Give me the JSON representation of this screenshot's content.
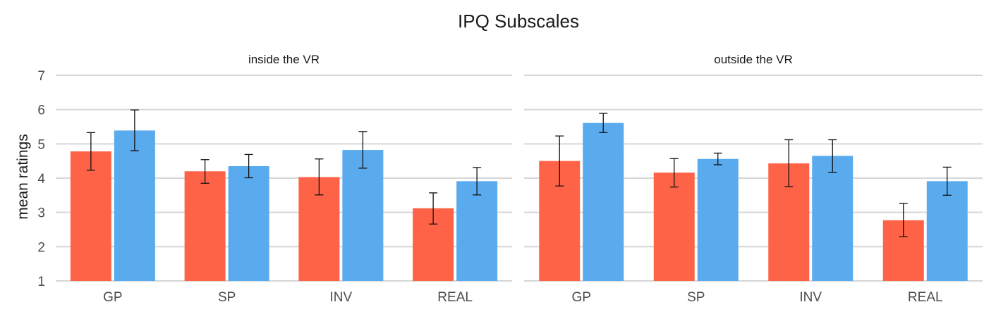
{
  "chart_data": {
    "type": "bar",
    "title": "IPQ Subscales",
    "xlabel": "",
    "ylabel": "mean ratings",
    "ylim": [
      1,
      7
    ],
    "yticks": [
      1,
      2,
      3,
      4,
      5,
      6,
      7
    ],
    "grid": true,
    "categories": [
      "GP",
      "SP",
      "INV",
      "REAL"
    ],
    "series_colors": [
      "#ff6347",
      "#5aaaee"
    ],
    "facets": [
      {
        "label": "inside the VR",
        "series": [
          {
            "values": [
              4.78,
              4.2,
              4.03,
              3.12
            ],
            "err_low": [
              4.23,
              3.85,
              3.51,
              2.66
            ],
            "err_high": [
              5.33,
              4.54,
              4.56,
              3.57
            ]
          },
          {
            "values": [
              5.39,
              4.35,
              4.82,
              3.91
            ],
            "err_low": [
              4.8,
              4.01,
              4.29,
              3.51
            ],
            "err_high": [
              5.99,
              4.69,
              5.36,
              4.31
            ]
          }
        ]
      },
      {
        "label": "outside the VR",
        "series": [
          {
            "values": [
              4.5,
              4.16,
              4.43,
              2.77
            ],
            "err_low": [
              3.77,
              3.74,
              3.75,
              2.29
            ],
            "err_high": [
              5.23,
              4.57,
              5.12,
              3.26
            ]
          },
          {
            "values": [
              5.61,
              4.56,
              4.65,
              3.91
            ],
            "err_low": [
              5.33,
              4.39,
              4.17,
              3.5
            ],
            "err_high": [
              5.89,
              4.73,
              5.12,
              4.32
            ]
          }
        ]
      }
    ]
  }
}
